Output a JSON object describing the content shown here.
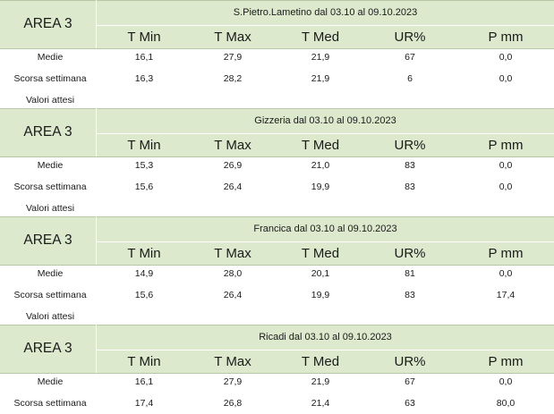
{
  "blocks": [
    {
      "area": "AREA 3",
      "title": "S.Pietro.Lametino dal 03.10 al 09.10.2023",
      "columns": [
        "T Min",
        "T Max",
        "T Med",
        "UR%",
        "P mm"
      ],
      "rows": [
        {
          "label": "Medie",
          "values": [
            "16,1",
            "27,9",
            "21,9",
            "67",
            "0,0"
          ]
        },
        {
          "label": "Scorsa settimana",
          "values": [
            "16,3",
            "28,2",
            "21,9",
            "6",
            "0,0"
          ]
        },
        {
          "label": "Valori attesi",
          "values": []
        }
      ]
    },
    {
      "area": "AREA 3",
      "title": "Gizzeria dal 03.10 al 09.10.2023",
      "columns": [
        "T Min",
        "T Max",
        "T Med",
        "UR%",
        "P mm"
      ],
      "rows": [
        {
          "label": "Medie",
          "values": [
            "15,3",
            "26,9",
            "21,0",
            "83",
            "0,0"
          ]
        },
        {
          "label": "Scorsa settimana",
          "values": [
            "15,6",
            "26,4",
            "19,9",
            "83",
            "0,0"
          ]
        },
        {
          "label": "Valori attesi",
          "values": []
        }
      ]
    },
    {
      "area": "AREA 3",
      "title": "Francica dal 03.10 al 09.10.2023",
      "columns": [
        "T Min",
        "T Max",
        "T Med",
        "UR%",
        "P mm"
      ],
      "rows": [
        {
          "label": "Medie",
          "values": [
            "14,9",
            "28,0",
            "20,1",
            "81",
            "0,0"
          ]
        },
        {
          "label": "Scorsa settimana",
          "values": [
            "15,6",
            "26,4",
            "19,9",
            "83",
            "17,4"
          ]
        },
        {
          "label": "Valori attesi",
          "values": []
        }
      ]
    },
    {
      "area": "AREA 3",
      "title": "Ricadi  dal 03.10 al 09.10.2023",
      "columns": [
        "T Min",
        "T Max",
        "T Med",
        "UR%",
        "P mm"
      ],
      "rows": [
        {
          "label": "Medie",
          "values": [
            "16,1",
            "27,9",
            "21,9",
            "67",
            "0,0"
          ]
        },
        {
          "label": "Scorsa settimana",
          "values": [
            "17,4",
            "26,8",
            "21,4",
            "63",
            "80,0"
          ]
        }
      ]
    }
  ],
  "colors": {
    "header_background": "#dce9cd",
    "header_border": "#b7c9a4"
  }
}
